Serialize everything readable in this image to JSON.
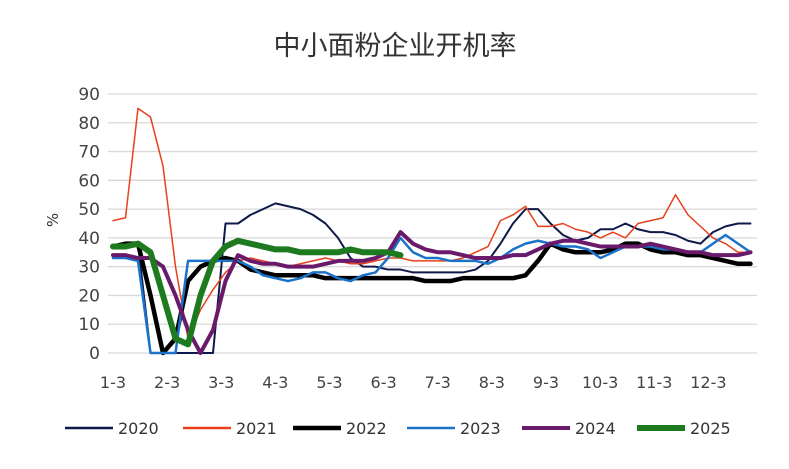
{
  "chart_data": {
    "type": "line",
    "title": "中小面粉企业开机率",
    "xlabel": "",
    "ylabel": "%",
    "ylim": [
      0,
      90
    ],
    "yticks": [
      0,
      10,
      20,
      30,
      40,
      50,
      60,
      70,
      80,
      90
    ],
    "xtick_labels": [
      "1-3",
      "2-3",
      "3-3",
      "4-3",
      "5-3",
      "6-3",
      "7-3",
      "8-3",
      "9-3",
      "10-3",
      "11-3",
      "12-3"
    ],
    "x_note_weekly_points": 52,
    "grid": true,
    "legend_position": "bottom",
    "series": [
      {
        "name": "2020",
        "color": "#0f1a4a",
        "width": 2,
        "values": [
          37,
          37,
          38,
          0,
          0,
          0,
          0,
          0,
          0,
          45,
          45,
          48,
          50,
          52,
          51,
          50,
          48,
          45,
          40,
          33,
          30,
          30,
          29,
          29,
          28,
          28,
          28,
          28,
          28,
          29,
          32,
          38,
          45,
          50,
          50,
          45,
          41,
          39,
          40,
          43,
          43,
          45,
          43,
          42,
          42,
          41,
          39,
          38,
          42,
          44,
          45,
          45
        ]
      },
      {
        "name": "2021",
        "color": "#e8401c",
        "width": 1.5,
        "values": [
          46,
          47,
          85,
          82,
          65,
          30,
          5,
          15,
          22,
          28,
          32,
          33,
          32,
          31,
          30,
          31,
          32,
          33,
          32,
          31,
          31,
          32,
          33,
          33,
          32,
          32,
          32,
          32,
          33,
          35,
          37,
          46,
          48,
          51,
          44,
          44,
          45,
          43,
          42,
          40,
          42,
          40,
          45,
          46,
          47,
          55,
          48,
          44,
          40,
          38,
          35,
          35
        ]
      },
      {
        "name": "2022",
        "color": "#000000",
        "width": 4.5,
        "values": [
          37,
          38,
          38,
          20,
          0,
          5,
          25,
          30,
          32,
          33,
          32,
          29,
          28,
          27,
          27,
          27,
          27,
          26,
          26,
          26,
          26,
          26,
          26,
          26,
          26,
          25,
          25,
          25,
          26,
          26,
          26,
          26,
          26,
          27,
          32,
          38,
          36,
          35,
          35,
          35,
          36,
          38,
          38,
          36,
          35,
          35,
          34,
          34,
          33,
          32,
          31,
          31
        ]
      },
      {
        "name": "2023",
        "color": "#1a73c8",
        "width": 2.5,
        "values": [
          33,
          33,
          32,
          0,
          0,
          0,
          32,
          32,
          32,
          32,
          32,
          30,
          27,
          26,
          25,
          26,
          28,
          28,
          26,
          25,
          27,
          28,
          33,
          40,
          35,
          33,
          33,
          32,
          32,
          32,
          31,
          33,
          36,
          38,
          39,
          38,
          37,
          37,
          36,
          33,
          35,
          37,
          37,
          37,
          36,
          36,
          35,
          35,
          38,
          41,
          38,
          35
        ]
      },
      {
        "name": "2024",
        "color": "#6a1a6a",
        "width": 4,
        "values": [
          34,
          34,
          33,
          33,
          30,
          20,
          8,
          0,
          8,
          25,
          34,
          32,
          31,
          31,
          30,
          30,
          30,
          31,
          32,
          32,
          32,
          33,
          35,
          42,
          38,
          36,
          35,
          35,
          34,
          33,
          33,
          33,
          34,
          34,
          36,
          38,
          39,
          39,
          38,
          37,
          37,
          37,
          37,
          38,
          37,
          36,
          35,
          35,
          34,
          34,
          34,
          35
        ]
      },
      {
        "name": "2025",
        "color": "#1e7a1e",
        "width": 6,
        "values": [
          37,
          37,
          38,
          35,
          20,
          5,
          3,
          20,
          32,
          37,
          39,
          38,
          37,
          36,
          36,
          35,
          35,
          35,
          35,
          36,
          35,
          35,
          35,
          34
        ]
      }
    ]
  }
}
